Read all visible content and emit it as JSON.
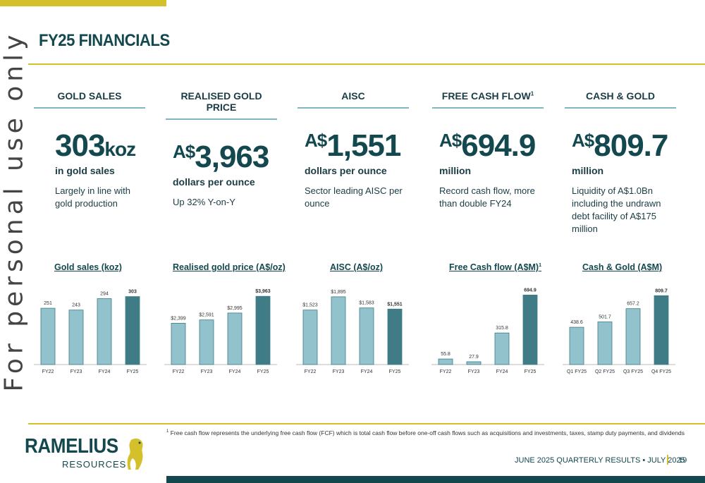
{
  "title": "FY25 FINANCIALS",
  "watermark": "For personal use only",
  "columns": [
    {
      "heading": "GOLD SALES",
      "sup": "",
      "prefix": "",
      "value": "303",
      "unit": "koz",
      "sub": "in gold sales",
      "desc": "Largely in line with gold production"
    },
    {
      "heading": "REALISED GOLD PRICE",
      "sup": "",
      "prefix": "A$",
      "value": "3,963",
      "unit": "",
      "sub": "dollars per ounce",
      "desc": "Up 32% Y-on-Y"
    },
    {
      "heading": "AISC",
      "sup": "",
      "prefix": "A$",
      "value": "1,551",
      "unit": "",
      "sub": "dollars per ounce",
      "desc": "Sector leading AISC per ounce"
    },
    {
      "heading": "FREE CASH FLOW",
      "sup": "1",
      "prefix": "A$",
      "value": "694.9",
      "unit": "",
      "sub": "million",
      "desc": "Record cash flow, more than double FY24"
    },
    {
      "heading": "CASH & GOLD",
      "sup": "",
      "prefix": "A$",
      "value": "809.7",
      "unit": "",
      "sub": "million",
      "desc": "Liquidity of A$1.0Bn including the undrawn debt facility of A$175 million"
    }
  ],
  "chart_data": [
    {
      "type": "bar",
      "title": "Gold sales (koz)",
      "categories": [
        "FY22",
        "FY23",
        "FY24",
        "FY25"
      ],
      "values": [
        251,
        243,
        294,
        303
      ],
      "labels": [
        "251",
        "243",
        "294",
        "303"
      ],
      "ylim": [
        0,
        330
      ]
    },
    {
      "type": "bar",
      "title": "Realised gold price (A$/oz)",
      "categories": [
        "FY22",
        "FY23",
        "FY24",
        "FY25"
      ],
      "values": [
        2399,
        2591,
        2995,
        3963
      ],
      "labels": [
        "$2,399",
        "$2,591",
        "$2,995",
        "$3,963"
      ],
      "ylim": [
        0,
        4300
      ]
    },
    {
      "type": "bar",
      "title": "AISC (A$/oz)",
      "categories": [
        "FY22",
        "FY23",
        "FY24",
        "FY25"
      ],
      "values": [
        1523,
        1895,
        1583,
        1551
      ],
      "labels": [
        "$1,523",
        "$1,895",
        "$1,583",
        "$1,551"
      ],
      "ylim": [
        0,
        2070
      ]
    },
    {
      "type": "bar",
      "title": "Free Cash flow (A$M)",
      "title_sup": "1",
      "categories": [
        "FY22",
        "FY23",
        "FY24",
        "FY25"
      ],
      "values": [
        55.8,
        27.9,
        315.8,
        694.9
      ],
      "labels": [
        "55.8",
        "27.9",
        "315.8",
        "694.9"
      ],
      "ylim": [
        0,
        740
      ]
    },
    {
      "type": "bar",
      "title": "Cash & Gold (A$M)",
      "categories": [
        "Q1 FY25",
        "Q2 FY25",
        "Q3 FY25",
        "Q4 FY25"
      ],
      "values": [
        438.6,
        501.7,
        657.2,
        809.7
      ],
      "labels": [
        "438.6",
        "501.7",
        "657.2",
        "809.7"
      ],
      "ylim": [
        0,
        870
      ]
    }
  ],
  "colors": {
    "bar": "#92c2cc",
    "bar_highlight": "#3f7c86",
    "bar_stroke": "#3f7c86",
    "accent": "#d4c02a",
    "brand": "#13484f"
  },
  "footnote": {
    "sup": "1",
    "text": "Free cash flow represents the underlying free cash flow (FCF) which is total cash flow before one-off cash flows such as acquisitions and investments, taxes, stamp duty payments, and dividends"
  },
  "logo": {
    "name": "RAMELIUS",
    "sub": "RESOURCES"
  },
  "footer": {
    "text": "JUNE 2025 QUARTERLY RESULTS • JULY 2025",
    "page": "19"
  }
}
